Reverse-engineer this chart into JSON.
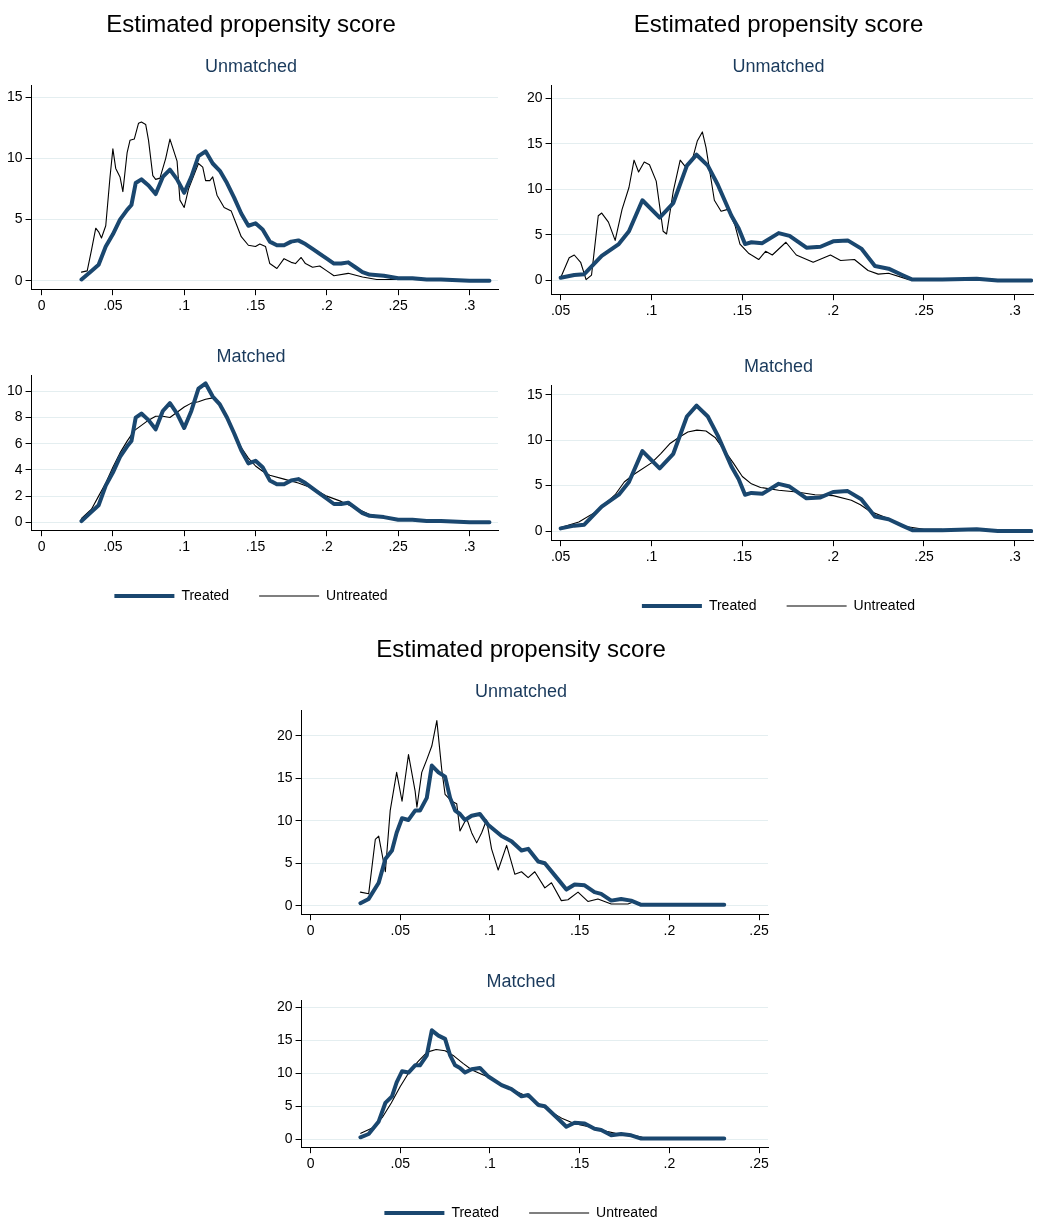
{
  "chart_data": [
    {
      "type": "line",
      "title": "Estimated propensity score",
      "subtitle": "Unmatched",
      "xlim": [
        -0.007,
        0.32
      ],
      "ylim": [
        -0.7,
        16
      ],
      "xticks": [
        {
          "value": 0,
          "label": "0"
        },
        {
          "value": 0.05,
          "label": ".05"
        },
        {
          "value": 0.1,
          "label": ".1"
        },
        {
          "value": 0.15,
          "label": ".15"
        },
        {
          "value": 0.2,
          "label": ".2"
        },
        {
          "value": 0.25,
          "label": ".25"
        },
        {
          "value": 0.3,
          "label": ".3"
        }
      ],
      "yticks": [
        0,
        5,
        10,
        15
      ],
      "grid": "y",
      "marker": "none",
      "line_style": "solid",
      "series": [
        {
          "color": "#1a476f",
          "x": [
            0.028,
            0.035,
            0.04,
            0.045,
            0.05,
            0.055,
            0.06,
            0.063,
            0.066,
            0.07,
            0.075,
            0.08,
            0.085,
            0.09,
            0.095,
            0.1,
            0.105,
            0.11,
            0.115,
            0.12,
            0.125,
            0.13,
            0.135,
            0.14,
            0.145,
            0.15,
            0.155,
            0.16,
            0.165,
            0.17,
            0.175,
            0.18,
            0.185,
            0.19,
            0.2,
            0.205,
            0.21,
            0.215,
            0.22,
            0.225,
            0.23,
            0.24,
            0.25,
            0.26,
            0.27,
            0.28,
            0.3,
            0.314
          ],
          "values": [
            0.1,
            0.8,
            1.3,
            2.8,
            3.8,
            5.0,
            5.8,
            6.2,
            8.0,
            8.3,
            7.8,
            7.1,
            8.5,
            9.1,
            8.3,
            7.2,
            8.5,
            10.2,
            10.6,
            9.6,
            9.0,
            8.0,
            6.8,
            5.5,
            4.5,
            4.7,
            4.2,
            3.2,
            2.9,
            2.9,
            3.2,
            3.3,
            3.0,
            2.6,
            1.8,
            1.4,
            1.4,
            1.5,
            1.1,
            0.7,
            0.5,
            0.4,
            0.2,
            0.2,
            0.1,
            0.1,
            0,
            0
          ]
        },
        {
          "color": "#000000",
          "x": [
            0.028,
            0.032,
            0.035,
            0.038,
            0.04,
            0.042,
            0.045,
            0.048,
            0.05,
            0.052,
            0.055,
            0.057,
            0.06,
            0.062,
            0.065,
            0.068,
            0.07,
            0.073,
            0.075,
            0.078,
            0.08,
            0.083,
            0.087,
            0.09,
            0.095,
            0.097,
            0.1,
            0.103,
            0.11,
            0.113,
            0.115,
            0.118,
            0.12,
            0.123,
            0.128,
            0.133,
            0.137,
            0.14,
            0.145,
            0.15,
            0.153,
            0.157,
            0.16,
            0.165,
            0.17,
            0.175,
            0.178,
            0.182,
            0.185,
            0.19,
            0.195,
            0.2,
            0.205,
            0.215,
            0.225,
            0.235,
            0.25,
            0.26,
            0.314
          ],
          "values": [
            0.7,
            0.8,
            2.5,
            4.3,
            4.0,
            3.5,
            4.5,
            8.5,
            10.8,
            9.2,
            8.5,
            7.3,
            10.5,
            11.5,
            11.6,
            12.9,
            13.0,
            12.8,
            11.5,
            8.6,
            8.3,
            8.4,
            10.0,
            11.6,
            9.8,
            6.6,
            6.0,
            7.5,
            9.6,
            9.3,
            8.2,
            8.2,
            8.5,
            7.0,
            6.0,
            5.7,
            4.5,
            3.6,
            2.9,
            2.8,
            3.0,
            2.8,
            1.4,
            1.0,
            1.8,
            1.5,
            1.4,
            1.9,
            1.4,
            1.1,
            1.2,
            0.8,
            0.4,
            0.6,
            0.3,
            0.1,
            0.1,
            0.1,
            0.0
          ]
        }
      ]
    },
    {
      "type": "line",
      "title": "Estimated propensity score",
      "subtitle": "Unmatched",
      "xlim": [
        0.045,
        0.31
      ],
      "ylim": [
        -1.5,
        21.4
      ],
      "xticks": [
        {
          "value": 0.05,
          "label": ".05"
        },
        {
          "value": 0.1,
          "label": ".1"
        },
        {
          "value": 0.15,
          "label": ".15"
        },
        {
          "value": 0.2,
          "label": ".2"
        },
        {
          "value": 0.25,
          "label": ".25"
        },
        {
          "value": 0.3,
          "label": ".3"
        }
      ],
      "yticks": [
        0,
        5,
        10,
        15,
        20
      ],
      "grid": "y",
      "marker": "none",
      "line_style": "solid",
      "series": [
        {
          "color": "#1a476f",
          "x": [
            0.05,
            0.0575,
            0.063,
            0.0726,
            0.082,
            0.0876,
            0.095,
            0.1045,
            0.112,
            0.1195,
            0.1248,
            0.131,
            0.1365,
            0.144,
            0.148,
            0.1515,
            0.155,
            0.161,
            0.17,
            0.176,
            0.1853,
            0.193,
            0.2,
            0.208,
            0.2155,
            0.223,
            0.2305,
            0.238,
            0.2436,
            0.26,
            0.279,
            0.2906,
            0.309
          ],
          "values": [
            0.3,
            0.6,
            0.7,
            2.7,
            4.0,
            5.4,
            8.8,
            6.9,
            8.5,
            12.6,
            13.8,
            12.6,
            10.5,
            7.1,
            5.7,
            4.0,
            4.2,
            4.1,
            5.2,
            4.9,
            3.6,
            3.7,
            4.3,
            4.4,
            3.5,
            1.6,
            1.3,
            0.6,
            0.1,
            0.1,
            0.2,
            0,
            0
          ]
        },
        {
          "color": "#000000",
          "x": [
            0.05,
            0.0547,
            0.0575,
            0.061,
            0.064,
            0.067,
            0.0707,
            0.0726,
            0.0763,
            0.08,
            0.0838,
            0.0876,
            0.0904,
            0.0929,
            0.096,
            0.0989,
            0.1026,
            0.1064,
            0.1083,
            0.112,
            0.1158,
            0.1186,
            0.1224,
            0.1252,
            0.128,
            0.13,
            0.1346,
            0.1383,
            0.142,
            0.1459,
            0.1487,
            0.1534,
            0.159,
            0.1628,
            0.1665,
            0.174,
            0.1797,
            0.189,
            0.1985,
            0.2041,
            0.2117,
            0.2192,
            0.2248,
            0.2305,
            0.2417,
            0.26
          ],
          "values": [
            0.3,
            2.5,
            2.8,
            2.0,
            0.1,
            0.6,
            7.1,
            7.4,
            6.4,
            4.4,
            7.8,
            10.2,
            13.2,
            11.9,
            13.0,
            12.7,
            10.9,
            5.4,
            5.1,
            9.8,
            13.2,
            12.5,
            13.2,
            15.3,
            16.3,
            14.6,
            8.8,
            7.6,
            7.8,
            6.1,
            4.0,
            3.0,
            2.3,
            3.2,
            2.8,
            4.2,
            2.8,
            2.0,
            2.8,
            2.2,
            2.3,
            1.1,
            0.7,
            0.8,
            0.1,
            0.1
          ]
        }
      ]
    },
    {
      "type": "line",
      "title": "Matched",
      "xlim": [
        -0.007,
        0.32
      ],
      "ylim": [
        -0.6,
        11.2
      ],
      "xticks": [
        {
          "value": 0,
          "label": "0"
        },
        {
          "value": 0.05,
          "label": ".05"
        },
        {
          "value": 0.1,
          "label": ".1"
        },
        {
          "value": 0.15,
          "label": ".15"
        },
        {
          "value": 0.2,
          "label": ".2"
        },
        {
          "value": 0.25,
          "label": ".25"
        },
        {
          "value": 0.3,
          "label": ".3"
        }
      ],
      "yticks": [
        0,
        2,
        4,
        6,
        8,
        10
      ],
      "grid": "y",
      "legend": "bottom",
      "marker": "none",
      "line_style": "solid",
      "series": [
        {
          "name": "Treated",
          "color": "#1a476f",
          "x": [
            0.028,
            0.035,
            0.04,
            0.045,
            0.05,
            0.055,
            0.06,
            0.063,
            0.066,
            0.07,
            0.075,
            0.08,
            0.085,
            0.09,
            0.095,
            0.1,
            0.105,
            0.11,
            0.115,
            0.12,
            0.125,
            0.13,
            0.135,
            0.14,
            0.145,
            0.15,
            0.155,
            0.16,
            0.165,
            0.17,
            0.175,
            0.18,
            0.185,
            0.19,
            0.2,
            0.205,
            0.21,
            0.215,
            0.22,
            0.225,
            0.23,
            0.24,
            0.25,
            0.26,
            0.27,
            0.28,
            0.3,
            0.314
          ],
          "values": [
            0.1,
            0.8,
            1.3,
            2.8,
            3.8,
            5.0,
            5.8,
            6.2,
            8.0,
            8.3,
            7.8,
            7.1,
            8.5,
            9.1,
            8.3,
            7.2,
            8.5,
            10.2,
            10.6,
            9.6,
            9.0,
            8.0,
            6.8,
            5.5,
            4.5,
            4.7,
            4.2,
            3.2,
            2.9,
            2.9,
            3.2,
            3.3,
            3.0,
            2.6,
            1.8,
            1.4,
            1.4,
            1.5,
            1.1,
            0.7,
            0.5,
            0.4,
            0.2,
            0.2,
            0.1,
            0.1,
            0,
            0
          ]
        },
        {
          "name": "Untreated",
          "color": "#000000",
          "x": [
            0.028,
            0.035,
            0.04,
            0.045,
            0.05,
            0.055,
            0.06,
            0.065,
            0.07,
            0.075,
            0.08,
            0.085,
            0.09,
            0.095,
            0.1,
            0.105,
            0.11,
            0.115,
            0.12,
            0.125,
            0.13,
            0.135,
            0.14,
            0.145,
            0.15,
            0.155,
            0.16,
            0.17,
            0.18,
            0.19,
            0.2,
            0.21,
            0.22,
            0.23,
            0.24
          ],
          "values": [
            0.3,
            1.0,
            2.0,
            3.0,
            4.2,
            5.3,
            6.2,
            7.0,
            7.4,
            7.8,
            8.1,
            8.1,
            8.0,
            8.4,
            8.8,
            9.1,
            9.2,
            9.4,
            9.5,
            9.0,
            8.0,
            6.9,
            5.7,
            4.9,
            4.3,
            3.9,
            3.6,
            3.3,
            3.0,
            2.6,
            2.0,
            1.6,
            1.1,
            0.6,
            0.4
          ]
        }
      ]
    },
    {
      "type": "line",
      "title": "Matched",
      "xlim": [
        0.045,
        0.31
      ],
      "ylim": [
        -1,
        16
      ],
      "xticks": [
        {
          "value": 0.05,
          "label": ".05"
        },
        {
          "value": 0.1,
          "label": ".1"
        },
        {
          "value": 0.15,
          "label": ".15"
        },
        {
          "value": 0.2,
          "label": ".2"
        },
        {
          "value": 0.25,
          "label": ".25"
        },
        {
          "value": 0.3,
          "label": ".3"
        }
      ],
      "yticks": [
        0,
        5,
        10,
        15
      ],
      "grid": "y",
      "legend": "bottom",
      "marker": "none",
      "line_style": "solid",
      "series": [
        {
          "name": "Treated",
          "color": "#1a476f",
          "x": [
            0.05,
            0.0575,
            0.063,
            0.0726,
            0.082,
            0.0876,
            0.095,
            0.1045,
            0.112,
            0.1195,
            0.1248,
            0.131,
            0.1365,
            0.144,
            0.148,
            0.1515,
            0.155,
            0.161,
            0.17,
            0.176,
            0.1853,
            0.193,
            0.2,
            0.208,
            0.2155,
            0.223,
            0.2305,
            0.238,
            0.2436,
            0.26,
            0.279,
            0.2906,
            0.309
          ],
          "values": [
            0.3,
            0.6,
            0.7,
            2.7,
            4.0,
            5.4,
            8.8,
            6.9,
            8.5,
            12.6,
            13.8,
            12.6,
            10.5,
            7.1,
            5.7,
            4.0,
            4.2,
            4.1,
            5.2,
            4.9,
            3.6,
            3.7,
            4.3,
            4.4,
            3.5,
            1.6,
            1.3,
            0.6,
            0.1,
            0.1,
            0.2,
            0,
            0
          ]
        },
        {
          "name": "Untreated",
          "color": "#000000",
          "x": [
            0.05,
            0.06,
            0.07,
            0.08,
            0.085,
            0.09,
            0.1,
            0.105,
            0.11,
            0.115,
            0.12,
            0.125,
            0.13,
            0.135,
            0.14,
            0.145,
            0.15,
            0.155,
            0.16,
            0.17,
            0.18,
            0.19,
            0.2,
            0.21,
            0.215,
            0.22,
            0.23,
            0.24,
            0.25,
            0.26
          ],
          "values": [
            0.4,
            1.0,
            2.2,
            4.0,
            5.4,
            6.2,
            7.5,
            8.5,
            9.6,
            10.3,
            10.9,
            11.1,
            11.0,
            10.3,
            8.9,
            7.5,
            6.0,
            5.2,
            4.8,
            4.5,
            4.3,
            4.0,
            3.9,
            3.4,
            2.9,
            2.2,
            1.4,
            0.5,
            0.2,
            0.2
          ]
        }
      ]
    },
    {
      "type": "line",
      "title": "Estimated propensity score",
      "subtitle": "Unmatched",
      "xlim": [
        -0.005,
        0.255
      ],
      "ylim": [
        -1,
        23
      ],
      "xticks": [
        {
          "value": 0,
          "label": "0"
        },
        {
          "value": 0.05,
          "label": ".05"
        },
        {
          "value": 0.1,
          "label": ".1"
        },
        {
          "value": 0.15,
          "label": ".15"
        },
        {
          "value": 0.2,
          "label": ".2"
        },
        {
          "value": 0.25,
          "label": ".25"
        }
      ],
      "yticks": [
        0,
        5,
        10,
        15,
        20
      ],
      "grid": "y",
      "marker": "none",
      "line_style": "solid",
      "series": [
        {
          "color": "#1a476f",
          "x": [
            0.0278,
            0.0324,
            0.038,
            0.0417,
            0.0454,
            0.048,
            0.051,
            0.0546,
            0.0583,
            0.061,
            0.0648,
            0.0676,
            0.0713,
            0.075,
            0.0778,
            0.0806,
            0.0833,
            0.0861,
            0.0898,
            0.0944,
            0.0991,
            0.1065,
            0.112,
            0.1176,
            0.1213,
            0.1269,
            0.1306,
            0.138,
            0.1426,
            0.1472,
            0.1528,
            0.1583,
            0.162,
            0.1676,
            0.1731,
            0.1787,
            0.1843,
            0.199,
            0.2306
          ],
          "values": [
            0.3,
            0.8,
            2.7,
            5.5,
            6.5,
            8.6,
            10.3,
            10.1,
            11.2,
            11.2,
            12.7,
            16.5,
            15.7,
            15.2,
            12.7,
            11.2,
            10.8,
            10.1,
            10.6,
            10.8,
            9.5,
            8.2,
            7.6,
            6.5,
            6.7,
            5.2,
            5.0,
            3.1,
            1.9,
            2.5,
            2.4,
            1.6,
            1.4,
            0.6,
            0.8,
            0.6,
            0.1,
            0.1,
            0.1
          ]
        },
        {
          "color": "#000000",
          "x": [
            0.0278,
            0.0324,
            0.0361,
            0.038,
            0.0417,
            0.0444,
            0.048,
            0.051,
            0.0546,
            0.0583,
            0.0593,
            0.062,
            0.0648,
            0.0676,
            0.0704,
            0.0731,
            0.075,
            0.0787,
            0.0815,
            0.0833,
            0.087,
            0.0898,
            0.0926,
            0.0954,
            0.0981,
            0.1009,
            0.1046,
            0.1093,
            0.1139,
            0.1176,
            0.1213,
            0.125,
            0.1306,
            0.1343,
            0.1398,
            0.1435,
            0.1491,
            0.1546,
            0.1602,
            0.1676,
            0.1769,
            0.1806,
            0.1861
          ],
          "values": [
            1.6,
            1.4,
            7.8,
            8.2,
            4.0,
            11.2,
            15.7,
            12.3,
            17.8,
            13.5,
            11.6,
            15.7,
            17.2,
            18.8,
            21.8,
            16.1,
            13.1,
            12.3,
            12.0,
            8.8,
            10.3,
            8.6,
            7.4,
            8.6,
            10.1,
            6.7,
            4.2,
            7.1,
            3.7,
            4.0,
            3.3,
            4.0,
            2.1,
            2.7,
            0.6,
            0.7,
            1.6,
            0.5,
            0.8,
            0.2,
            0.2,
            0.5,
            0.1
          ]
        }
      ]
    },
    {
      "type": "line",
      "title": "Matched",
      "xlim": [
        -0.005,
        0.255
      ],
      "ylim": [
        -1.2,
        21
      ],
      "xticks": [
        {
          "value": 0,
          "label": "0"
        },
        {
          "value": 0.05,
          "label": ".05"
        },
        {
          "value": 0.1,
          "label": ".1"
        },
        {
          "value": 0.15,
          "label": ".15"
        },
        {
          "value": 0.2,
          "label": ".2"
        },
        {
          "value": 0.25,
          "label": ".25"
        }
      ],
      "yticks": [
        0,
        5,
        10,
        15,
        20
      ],
      "grid": "y",
      "legend": "bottom",
      "marker": "none",
      "line_style": "solid",
      "series": [
        {
          "name": "Treated",
          "color": "#1a476f",
          "x": [
            0.0278,
            0.0324,
            0.038,
            0.0417,
            0.0454,
            0.048,
            0.051,
            0.0546,
            0.0583,
            0.061,
            0.0648,
            0.0676,
            0.0713,
            0.075,
            0.0778,
            0.0806,
            0.0833,
            0.0861,
            0.0898,
            0.0944,
            0.0991,
            0.1065,
            0.112,
            0.1176,
            0.1213,
            0.1269,
            0.1306,
            0.138,
            0.1426,
            0.1472,
            0.1528,
            0.1583,
            0.162,
            0.1676,
            0.1731,
            0.1787,
            0.1843,
            0.199,
            0.2306
          ],
          "values": [
            0.3,
            0.8,
            2.7,
            5.5,
            6.5,
            8.6,
            10.3,
            10.1,
            11.2,
            11.2,
            12.7,
            16.5,
            15.7,
            15.2,
            12.7,
            11.2,
            10.8,
            10.1,
            10.6,
            10.8,
            9.5,
            8.2,
            7.6,
            6.5,
            6.7,
            5.2,
            5.0,
            3.1,
            1.9,
            2.5,
            2.4,
            1.6,
            1.4,
            0.6,
            0.8,
            0.6,
            0.1,
            0.1,
            0.1
          ]
        },
        {
          "name": "Untreated",
          "color": "#000000",
          "x": [
            0.028,
            0.035,
            0.04,
            0.045,
            0.05,
            0.055,
            0.06,
            0.065,
            0.07,
            0.075,
            0.08,
            0.085,
            0.09,
            0.095,
            0.1,
            0.105,
            0.11,
            0.115,
            0.12,
            0.125,
            0.13,
            0.135,
            0.14,
            0.145,
            0.15,
            0.155,
            0.16,
            0.165,
            0.17,
            0.175,
            0.18,
            0.185,
            0.19
          ],
          "values": [
            0.9,
            1.8,
            3.3,
            5.5,
            8.0,
            10.2,
            11.8,
            13.2,
            13.6,
            13.4,
            12.6,
            11.5,
            10.5,
            9.9,
            9.3,
            8.5,
            7.7,
            7.2,
            6.6,
            5.8,
            4.9,
            4.0,
            3.2,
            2.6,
            2.2,
            1.9,
            1.6,
            1.2,
            0.9,
            0.8,
            0.6,
            0.3,
            0.1
          ]
        }
      ]
    }
  ]
}
